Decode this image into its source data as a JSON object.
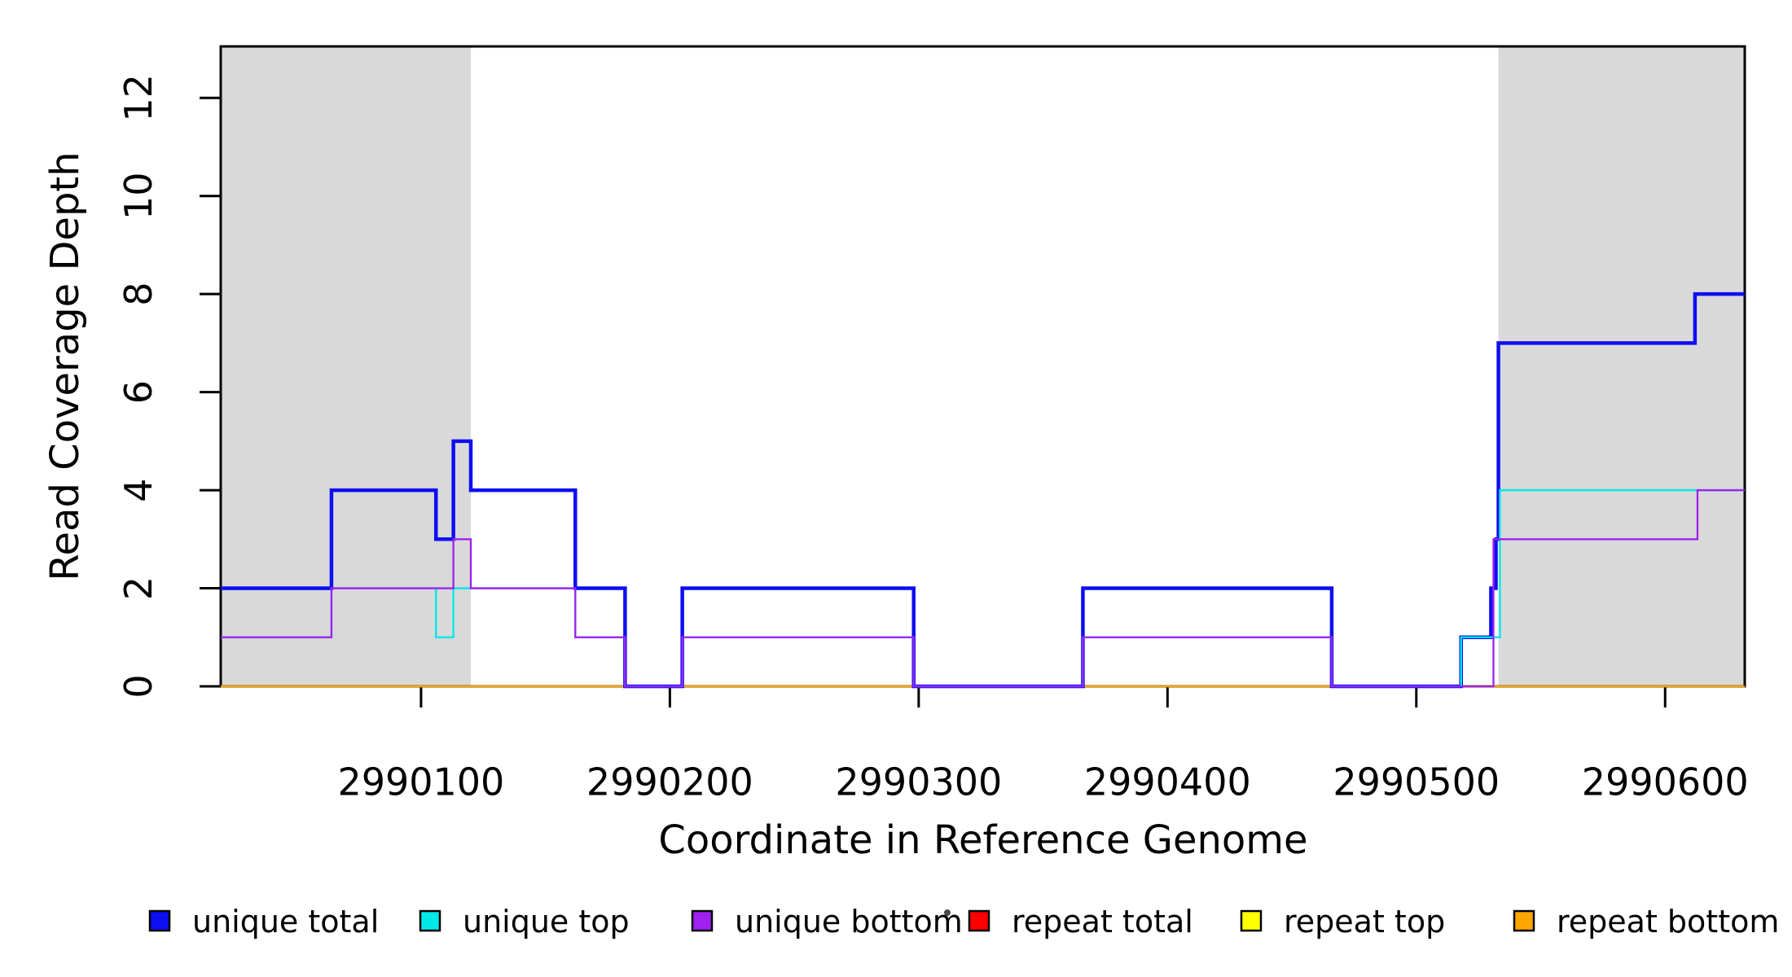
{
  "chart_data": {
    "type": "line",
    "subtype": "step-post",
    "title": "",
    "xlabel": "Coordinate in Reference Genome",
    "ylabel": "Read Coverage Depth",
    "xlim": [
      2990019.5,
      2990632
    ],
    "ylim": [
      0,
      13.05
    ],
    "x_ticks": [
      2990100,
      2990200,
      2990300,
      2990400,
      2990500,
      2990600
    ],
    "y_ticks": [
      0,
      2,
      4,
      6,
      8,
      10,
      12
    ],
    "grid": false,
    "box": true,
    "background": "#ffffff",
    "shade_color": "#D9D9D9",
    "shaded_regions": [
      {
        "name": "repeat-region-left",
        "from": 2990019.5,
        "to": 2990120
      },
      {
        "name": "repeat-region-right",
        "from": 2990533,
        "to": 2990632
      }
    ],
    "series": [
      {
        "name": "unique total",
        "color": "#0E0EF2",
        "line_width": 4.5,
        "steps": [
          [
            2990019.5,
            2
          ],
          [
            2990064,
            4
          ],
          [
            2990106,
            3
          ],
          [
            2990113,
            5
          ],
          [
            2990120,
            4
          ],
          [
            2990162,
            2
          ],
          [
            2990182,
            0
          ],
          [
            2990205,
            2
          ],
          [
            2990298,
            0
          ],
          [
            2990366,
            2
          ],
          [
            2990466,
            0
          ],
          [
            2990518,
            1
          ],
          [
            2990530,
            2
          ],
          [
            2990532,
            3
          ],
          [
            2990533,
            7
          ],
          [
            2990612,
            8
          ]
        ]
      },
      {
        "name": "unique top",
        "color": "#00E8E8",
        "line_width": 2.3,
        "steps": [
          [
            2990019.5,
            1
          ],
          [
            2990064,
            2
          ],
          [
            2990106,
            1
          ],
          [
            2990113,
            2
          ],
          [
            2990162,
            1
          ],
          [
            2990182,
            0
          ],
          [
            2990205,
            1
          ],
          [
            2990298,
            0
          ],
          [
            2990366,
            1
          ],
          [
            2990466,
            0
          ],
          [
            2990518,
            1
          ],
          [
            2990533.6,
            4
          ]
        ]
      },
      {
        "name": "unique bottom",
        "color": "#A020F0",
        "line_width": 2.3,
        "steps": [
          [
            2990019.5,
            1
          ],
          [
            2990064,
            2
          ],
          [
            2990113,
            3
          ],
          [
            2990120,
            2
          ],
          [
            2990162,
            1
          ],
          [
            2990182,
            0
          ],
          [
            2990205,
            1
          ],
          [
            2990298,
            0
          ],
          [
            2990366,
            1
          ],
          [
            2990466,
            0
          ],
          [
            2990531,
            3
          ],
          [
            2990613,
            4
          ]
        ]
      },
      {
        "name": "repeat total",
        "color": "#FF0000",
        "line_width": 2.3,
        "steps": [
          [
            2990019.5,
            0
          ]
        ]
      },
      {
        "name": "repeat top",
        "color": "#FFFF00",
        "line_width": 2.3,
        "steps": [
          [
            2990019.5,
            0
          ]
        ]
      },
      {
        "name": "repeat bottom",
        "color": "#FFA500",
        "line_width": 2.3,
        "steps": [
          [
            2990019.5,
            0
          ]
        ]
      }
    ],
    "draw_order": [
      "repeat total",
      "repeat top",
      "repeat bottom",
      "unique total",
      "unique top",
      "unique bottom"
    ],
    "legend": {
      "position": "bottom",
      "entries": [
        {
          "label": "unique total",
          "color": "#0E0EF2"
        },
        {
          "label": "unique top",
          "color": "#00E8E8"
        },
        {
          "label": "unique bottom",
          "color": "#A020F0"
        },
        {
          "label": "repeat total",
          "color": "#FF0000"
        },
        {
          "label": "repeat top",
          "color": "#FFFF00"
        },
        {
          "label": "repeat bottom",
          "color": "#FFA500"
        }
      ]
    }
  }
}
